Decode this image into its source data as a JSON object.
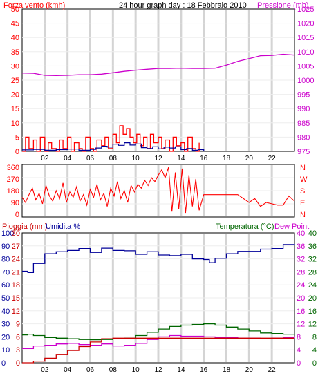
{
  "colors": {
    "red": "#ff0000",
    "darkred": "#cc0000",
    "magenta": "#cc00cc",
    "blue": "#000099",
    "green": "#006600",
    "brightgreen": "#009900",
    "grid": "#d4d4d4",
    "text": "#000000"
  },
  "chart_data": [
    {
      "id": "wind-pressure",
      "type": "line",
      "title": "24 hour graph day : 18 Febbraio 2010",
      "left_axis_label": "Forza vento (kmh)",
      "right_axis_label": "Pressione (mb)",
      "left_ticks": [
        0,
        5,
        10,
        15,
        20,
        25,
        30,
        35,
        40,
        45,
        50
      ],
      "right_ticks": [
        975,
        980,
        985,
        990,
        995,
        1000,
        1005,
        1010,
        1015,
        1020,
        1025
      ],
      "left_range": [
        0,
        50
      ],
      "right_range": [
        975,
        1025
      ],
      "x_ticks": [
        "02",
        "04",
        "06",
        "08",
        "10",
        "12",
        "14",
        "16",
        "18",
        "20",
        "22"
      ],
      "x_range": [
        0,
        24
      ],
      "series": [
        {
          "color_key": "magenta",
          "axis": "right",
          "x": [
            0,
            1,
            2,
            3,
            4,
            5,
            6,
            7,
            8,
            9,
            10,
            11,
            12,
            13,
            14,
            15,
            16,
            17,
            18,
            19,
            20,
            21,
            22,
            23,
            24
          ],
          "y": [
            1002.5,
            1002.4,
            1001.7,
            1001.6,
            1001.7,
            1001.9,
            1001.9,
            1002.1,
            1002.6,
            1003.1,
            1003.5,
            1003.8,
            1004.1,
            1004.1,
            1004.2,
            1004.1,
            1004.1,
            1004.2,
            1005.3,
            1006.6,
            1007.6,
            1008.6,
            1008.7,
            1009.1,
            1008.8
          ]
        },
        {
          "color_key": "red",
          "axis": "left",
          "x": [
            0,
            0.3,
            0.6,
            1,
            1.3,
            1.6,
            2,
            2.3,
            2.6,
            3,
            3.3,
            3.6,
            4,
            4.3,
            4.6,
            5,
            5.3,
            5.6,
            6,
            6.3,
            6.6,
            7,
            7.3,
            7.6,
            8,
            8.3,
            8.6,
            8.9,
            9.2,
            9.5,
            9.8,
            10.1,
            10.4,
            10.7,
            11,
            11.3,
            11.6,
            12,
            12.3,
            12.6,
            13,
            13.3,
            13.6,
            14,
            14.3,
            14.6,
            15,
            15.3,
            15.6
          ],
          "y": [
            0,
            5,
            1,
            4,
            0,
            5,
            0,
            3,
            1,
            0,
            4,
            1,
            5,
            0,
            3,
            1,
            0,
            5,
            1,
            0,
            4,
            2,
            5,
            1,
            6,
            3,
            9,
            6,
            8,
            5,
            3,
            6,
            2,
            5,
            1,
            6,
            3,
            5,
            1,
            4,
            0,
            5,
            2,
            3,
            0,
            5,
            1,
            0,
            3
          ]
        },
        {
          "color_key": "blue",
          "axis": "left",
          "x": [
            0,
            1,
            2,
            3,
            4,
            5,
            6,
            6.5,
            7,
            7.5,
            8,
            8.5,
            9,
            9.5,
            10,
            10.5,
            11,
            11.5,
            12,
            12.5,
            13,
            13.5,
            14,
            14.5,
            15,
            15.5,
            16
          ],
          "y": [
            0.5,
            0.7,
            0.4,
            0.6,
            0.8,
            0.4,
            0.7,
            1.2,
            1.8,
            1.5,
            2.5,
            2.1,
            3.0,
            2.2,
            2.6,
            1.3,
            1.0,
            1.6,
            0.9,
            1.5,
            1.2,
            1.6,
            0.6,
            1.0,
            0.4,
            0.6,
            0
          ]
        }
      ]
    },
    {
      "id": "direction",
      "type": "line",
      "left_ticks": [
        0,
        90,
        180,
        270,
        360
      ],
      "right_ticks": [
        "N",
        "W",
        "S",
        "E",
        "N"
      ],
      "left_range": [
        0,
        360
      ],
      "x_range": [
        0,
        24
      ],
      "series": [
        {
          "color_key": "red",
          "x": [
            0,
            0.3,
            0.6,
            0.9,
            1.2,
            1.5,
            1.8,
            2.1,
            2.4,
            2.7,
            3,
            3.3,
            3.6,
            3.9,
            4.2,
            4.5,
            4.8,
            5.1,
            5.4,
            5.7,
            6,
            6.3,
            6.6,
            6.9,
            7.2,
            7.5,
            7.8,
            8.1,
            8.4,
            8.7,
            9,
            9.3,
            9.6,
            9.9,
            10.2,
            10.5,
            10.8,
            11.1,
            11.4,
            11.7,
            12,
            12.3,
            12.6,
            12.9,
            13.2,
            13.5,
            13.8,
            14.1,
            14.4,
            14.7,
            15,
            15.3,
            15.6,
            16,
            17,
            18,
            19,
            19.5,
            20,
            20.5,
            21,
            21.5,
            22,
            22.5,
            23,
            23.5,
            24
          ],
          "y": [
            130,
            90,
            150,
            200,
            110,
            160,
            80,
            220,
            140,
            100,
            180,
            120,
            240,
            90,
            170,
            130,
            210,
            100,
            150,
            70,
            190,
            130,
            230,
            110,
            160,
            60,
            200,
            140,
            250,
            120,
            180,
            90,
            220,
            170,
            230,
            200,
            260,
            220,
            280,
            250,
            300,
            340,
            280,
            360,
            20,
            320,
            40,
            350,
            10,
            300,
            60,
            270,
            30,
            150,
            150,
            150,
            150,
            120,
            90,
            120,
            60,
            90,
            80,
            70,
            70,
            140,
            100
          ]
        }
      ]
    },
    {
      "id": "temp-humidity",
      "type": "line",
      "labels": [
        "Pioggia (mm)",
        "Umidita %",
        "Temperatura (°C)",
        "Dew Point"
      ],
      "rain_ticks": [
        0,
        3,
        6,
        9,
        12,
        15,
        18,
        21,
        24,
        27,
        30
      ],
      "humidity_ticks": [
        0,
        10,
        20,
        30,
        40,
        50,
        60,
        70,
        80,
        90,
        100
      ],
      "temp_ticks_right1": [
        0,
        4,
        8,
        12,
        16,
        20,
        24,
        28,
        32,
        36,
        40
      ],
      "temp_ticks_right2": [
        0,
        4,
        8,
        12,
        16,
        20,
        24,
        28,
        32,
        36,
        40
      ],
      "x_ticks": [
        "02",
        "04",
        "06",
        "08",
        "10",
        "12",
        "14",
        "16",
        "18",
        "20",
        "22"
      ],
      "x_range": [
        0,
        24
      ],
      "range": [
        0,
        40
      ],
      "series": [
        {
          "color_key": "blue",
          "x": [
            0,
            0.5,
            1,
            2,
            3,
            4,
            5,
            6,
            7,
            8,
            9,
            10,
            11,
            12,
            13,
            14,
            15,
            16,
            16.5,
            17,
            18,
            19,
            20,
            21,
            22,
            23,
            24
          ],
          "y": [
            28.2,
            27.8,
            30.6,
            33.6,
            34.2,
            34.6,
            35.2,
            34.0,
            35.3,
            34.6,
            34.5,
            33.4,
            34.2,
            33.2,
            33.0,
            33.4,
            32.0,
            31.8,
            30.8,
            32.2,
            33.6,
            34.3,
            34.3,
            35.0,
            35.2,
            36.4,
            36.6
          ]
        },
        {
          "color_key": "green",
          "x": [
            0,
            0.5,
            1,
            2,
            3,
            4,
            5,
            6,
            7,
            8,
            9,
            10,
            11,
            12,
            13,
            14,
            15,
            16,
            17,
            18,
            19,
            20,
            21,
            22,
            23,
            24
          ],
          "y": [
            8.6,
            8.8,
            8.4,
            7.8,
            7.6,
            7.4,
            7.2,
            7.1,
            7.2,
            7.4,
            7.6,
            8.4,
            9.4,
            10.4,
            11.2,
            11.6,
            11.8,
            12.0,
            11.6,
            11.0,
            10.4,
            9.8,
            9.2,
            9.0,
            8.8,
            8.6
          ]
        },
        {
          "color_key": "magenta",
          "x": [
            0,
            1,
            2,
            3,
            4,
            5,
            6,
            7,
            8,
            9,
            10,
            11,
            12,
            13,
            14,
            15,
            16,
            17,
            18,
            19,
            20,
            21,
            22,
            23,
            24
          ],
          "y": [
            4.4,
            5.2,
            5.4,
            5.8,
            6.0,
            5.6,
            5.4,
            5.8,
            5.2,
            5.4,
            6.0,
            7.2,
            8.0,
            8.4,
            8.2,
            8.2,
            8.0,
            7.8,
            7.8,
            7.6,
            7.6,
            7.4,
            7.6,
            7.8,
            8.2
          ]
        },
        {
          "color_key": "darkred",
          "x": [
            0,
            1,
            2,
            3,
            4,
            5,
            6,
            7,
            8,
            9,
            10,
            11,
            11.5,
            12,
            24
          ],
          "y": [
            0,
            0.5,
            1.4,
            2.6,
            3.8,
            5.0,
            6.4,
            7.4,
            7.6,
            7.6,
            7.6,
            7.6,
            7.6,
            7.6,
            7.6
          ]
        }
      ]
    }
  ]
}
